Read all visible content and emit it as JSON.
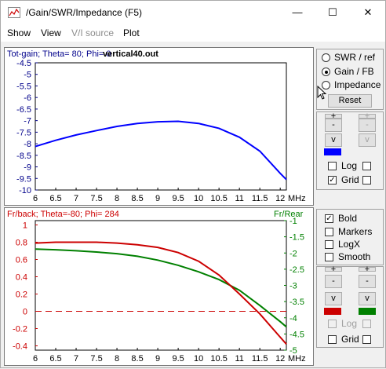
{
  "window": {
    "title": "/Gain/SWR/Impedance (F5)",
    "minimize": "—",
    "maximize": "☐",
    "close": "✕"
  },
  "menu": [
    "Show",
    "View",
    "V/I source",
    "Plot"
  ],
  "top_chart": {
    "title": "Tot-gain; Theta= 80; Phi= 0",
    "file": "vertical40.out",
    "y_ticks": [
      "-4.5",
      "-5",
      "-5.5",
      "-6",
      "-6.5",
      "-7",
      "-7.5",
      "-8",
      "-8.5",
      "-9",
      "-9.5",
      "-10"
    ],
    "x_ticks": [
      "6",
      "6.5",
      "7",
      "7.5",
      "8",
      "8.5",
      "9",
      "9.5",
      "10",
      "10.5",
      "11",
      "11.5",
      "12"
    ],
    "x_unit": "MHz",
    "series_color": "#0000ff"
  },
  "bottom_chart": {
    "title": "Fr/back; Theta=-80; Phi= 284",
    "right_title": "Fr/Rear",
    "left_ticks": [
      "1",
      "0.8",
      "0.6",
      "0.4",
      "0.2",
      "0",
      "-0.2",
      "-0.4"
    ],
    "right_ticks": [
      "-1",
      "-1.5",
      "-2",
      "-2.5",
      "-3",
      "-3.5",
      "-4",
      "-4.5",
      "-5"
    ],
    "x_ticks": [
      "6",
      "6.5",
      "7",
      "7.5",
      "8",
      "8.5",
      "9",
      "9.5",
      "10",
      "10.5",
      "11",
      "11.5",
      "12"
    ],
    "x_unit": "MHz",
    "left_color": "#cc0000",
    "right_color": "#008000"
  },
  "chart_data": [
    {
      "type": "line",
      "title": "Tot-gain; Theta= 80; Phi= 0",
      "xlabel": "MHz",
      "xlim": [
        6,
        12.15
      ],
      "ylim": [
        -10,
        -4.5
      ],
      "x": [
        6.0,
        6.5,
        7.0,
        7.5,
        8.0,
        8.5,
        9.0,
        9.5,
        10.0,
        10.5,
        11.0,
        11.5,
        12.0,
        12.15
      ],
      "series": [
        {
          "values": [
            -8.12,
            -7.85,
            -7.62,
            -7.43,
            -7.25,
            -7.12,
            -7.05,
            -7.03,
            -7.12,
            -7.33,
            -7.72,
            -8.32,
            -9.28,
            -9.55
          ]
        }
      ]
    },
    {
      "type": "line",
      "title": "Fr/back; Theta=-80; Phi= 284",
      "xlabel": "MHz",
      "xlim": [
        6,
        12.15
      ],
      "left_ylim": [
        -0.45,
        1.05
      ],
      "right_ylim": [
        -5,
        -1
      ],
      "x": [
        6.0,
        6.5,
        7.0,
        7.5,
        8.0,
        8.5,
        9.0,
        9.5,
        10.0,
        10.5,
        11.0,
        11.5,
        12.0,
        12.15
      ],
      "series": [
        {
          "axis": "left",
          "values": [
            0.79,
            0.8,
            0.8,
            0.8,
            0.79,
            0.77,
            0.74,
            0.68,
            0.58,
            0.42,
            0.2,
            -0.03,
            -0.3,
            -0.38
          ]
        },
        {
          "name": "Fr/Rear",
          "axis": "right",
          "values": [
            -1.88,
            -1.9,
            -1.93,
            -1.97,
            -2.02,
            -2.1,
            -2.22,
            -2.38,
            -2.58,
            -2.82,
            -3.15,
            -3.62,
            -4.12,
            -4.28
          ]
        }
      ]
    }
  ],
  "panel_top": {
    "radios": [
      {
        "label": "SWR / ref",
        "on": false
      },
      {
        "label": "Gain / FB",
        "on": true
      },
      {
        "label": "Impedance",
        "on": false
      }
    ],
    "reset": "Reset",
    "plus": "+",
    "minus": "-",
    "v": "v",
    "log": "Log",
    "grid": "Grid",
    "grid_checked": "✓"
  },
  "panel_bottom": {
    "bold": "Bold",
    "markers": "Markers",
    "logx": "LogX",
    "smooth": "Smooth",
    "log": "Log",
    "grid": "Grid",
    "checked": "✓"
  }
}
